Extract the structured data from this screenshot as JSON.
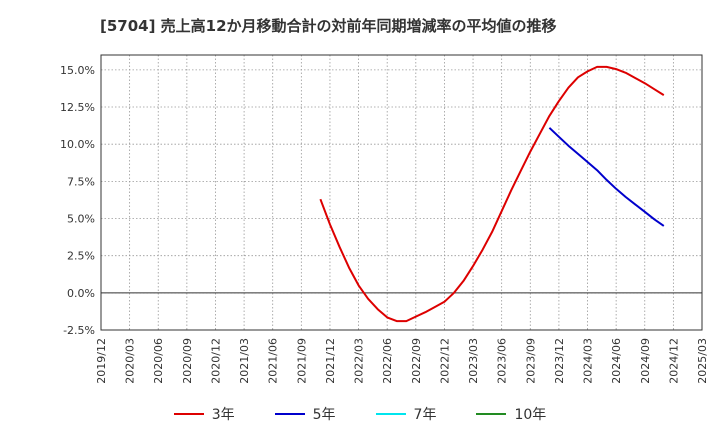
{
  "chart_data": {
    "type": "line",
    "title": "[5704]  売上高12か月移動合計の対前年同期増減率の平均値の推移",
    "xlabel": "",
    "ylabel": "",
    "ylim": [
      -2.5,
      16.0
    ],
    "grid": true,
    "legend_position": "bottom",
    "y_ticks": [
      15.0,
      12.5,
      10.0,
      7.5,
      5.0,
      2.5,
      0.0,
      -2.5
    ],
    "y_tick_labels": [
      "15.0%",
      "12.5%",
      "10.0%",
      "7.5%",
      "5.0%",
      "2.5%",
      "0.0%",
      "-2.5%"
    ],
    "x_tick_labels": [
      "2019/12",
      "2020/03",
      "2020/06",
      "2020/09",
      "2020/12",
      "2021/03",
      "2021/06",
      "2021/09",
      "2021/12",
      "2022/03",
      "2022/06",
      "2022/09",
      "2022/12",
      "2023/03",
      "2023/06",
      "2023/09",
      "2023/12",
      "2024/03",
      "2024/06",
      "2024/09",
      "2024/12",
      "2025/03"
    ],
    "series": [
      {
        "name": "3年",
        "color": "#dd0000",
        "points": [
          {
            "x": "2021/11",
            "y": 6.3
          },
          {
            "x": "2021/12",
            "y": 4.6
          },
          {
            "x": "2022/01",
            "y": 3.1
          },
          {
            "x": "2022/02",
            "y": 1.7
          },
          {
            "x": "2022/03",
            "y": 0.5
          },
          {
            "x": "2022/04",
            "y": -0.4
          },
          {
            "x": "2022/05",
            "y": -1.1
          },
          {
            "x": "2022/06",
            "y": -1.65
          },
          {
            "x": "2022/07",
            "y": -1.9
          },
          {
            "x": "2022/08",
            "y": -1.9
          },
          {
            "x": "2022/09",
            "y": -1.6
          },
          {
            "x": "2022/10",
            "y": -1.3
          },
          {
            "x": "2022/11",
            "y": -0.95
          },
          {
            "x": "2022/12",
            "y": -0.6
          },
          {
            "x": "2023/01",
            "y": 0.0
          },
          {
            "x": "2023/02",
            "y": 0.8
          },
          {
            "x": "2023/03",
            "y": 1.8
          },
          {
            "x": "2023/04",
            "y": 2.9
          },
          {
            "x": "2023/05",
            "y": 4.1
          },
          {
            "x": "2023/06",
            "y": 5.5
          },
          {
            "x": "2023/07",
            "y": 6.9
          },
          {
            "x": "2023/08",
            "y": 8.2
          },
          {
            "x": "2023/09",
            "y": 9.5
          },
          {
            "x": "2023/10",
            "y": 10.7
          },
          {
            "x": "2023/11",
            "y": 11.9
          },
          {
            "x": "2023/12",
            "y": 12.9
          },
          {
            "x": "2024/01",
            "y": 13.8
          },
          {
            "x": "2024/02",
            "y": 14.5
          },
          {
            "x": "2024/03",
            "y": 14.9
          },
          {
            "x": "2024/04",
            "y": 15.2
          },
          {
            "x": "2024/05",
            "y": 15.2
          },
          {
            "x": "2024/06",
            "y": 15.05
          },
          {
            "x": "2024/07",
            "y": 14.8
          },
          {
            "x": "2024/08",
            "y": 14.45
          },
          {
            "x": "2024/09",
            "y": 14.1
          },
          {
            "x": "2024/10",
            "y": 13.7
          },
          {
            "x": "2024/11",
            "y": 13.3
          }
        ]
      },
      {
        "name": "5年",
        "color": "#0000cc",
        "points": [
          {
            "x": "2023/11",
            "y": 11.1
          },
          {
            "x": "2023/12",
            "y": 10.5
          },
          {
            "x": "2024/01",
            "y": 9.9
          },
          {
            "x": "2024/02",
            "y": 9.35
          },
          {
            "x": "2024/03",
            "y": 8.8
          },
          {
            "x": "2024/04",
            "y": 8.25
          },
          {
            "x": "2024/05",
            "y": 7.6
          },
          {
            "x": "2024/06",
            "y": 7.0
          },
          {
            "x": "2024/07",
            "y": 6.45
          },
          {
            "x": "2024/08",
            "y": 5.95
          },
          {
            "x": "2024/09",
            "y": 5.45
          },
          {
            "x": "2024/10",
            "y": 4.95
          },
          {
            "x": "2024/11",
            "y": 4.5
          }
        ]
      },
      {
        "name": "7年",
        "color": "#00e5ee",
        "points": []
      },
      {
        "name": "10年",
        "color": "#228b22",
        "points": []
      }
    ]
  }
}
